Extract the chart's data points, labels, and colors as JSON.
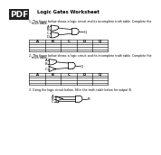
{
  "title": "Logic Gates Worksheet",
  "bg_color": "#ffffff",
  "text_color": "#000000",
  "q1_text": "1. The figure below shows a logic circuit and its incomplete truth table. Complete the truth table.",
  "q2_text": "2. The figure below shows a logic circuit and its incomplete truth table. Complete the truth table.",
  "q3_text": "3. Using the logic circuit below, fill in the truth table below for output B.",
  "table1_cols": [
    "A",
    "B",
    "C",
    "D",
    "Q"
  ],
  "table2_cols": [
    "A",
    "B",
    "C",
    "D",
    "Q"
  ],
  "table_rows": 4
}
